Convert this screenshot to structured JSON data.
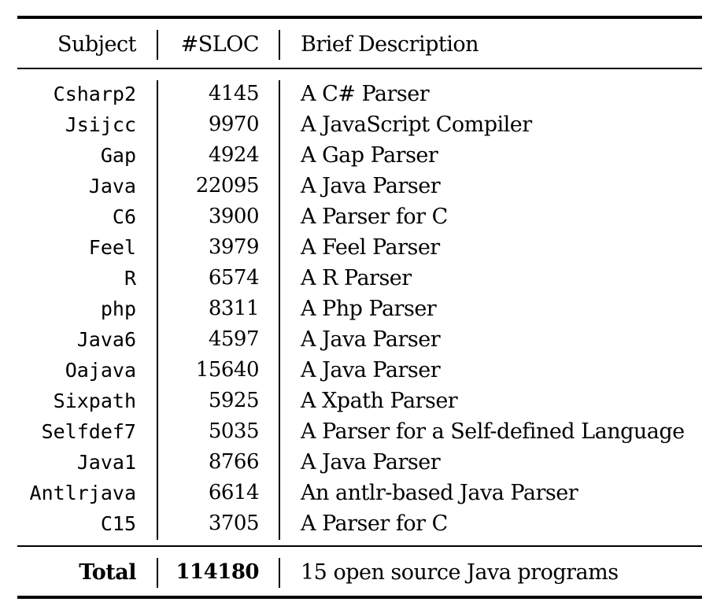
{
  "table": {
    "headers": {
      "subject": "Subject",
      "sloc": "#SLOC",
      "description": "Brief Description"
    },
    "rows": [
      {
        "subject": "Csharp2",
        "sloc": "4145",
        "description": "A C# Parser"
      },
      {
        "subject": "Jsijcc",
        "sloc": "9970",
        "description": "A JavaScript Compiler"
      },
      {
        "subject": "Gap",
        "sloc": "4924",
        "description": "A Gap Parser"
      },
      {
        "subject": "Java",
        "sloc": "22095",
        "description": "A Java Parser"
      },
      {
        "subject": "C6",
        "sloc": "3900",
        "description": "A Parser for C"
      },
      {
        "subject": "Feel",
        "sloc": "3979",
        "description": "A Feel Parser"
      },
      {
        "subject": "R",
        "sloc": "6574",
        "description": "A R Parser"
      },
      {
        "subject": "php",
        "sloc": "8311",
        "description": "A Php Parser"
      },
      {
        "subject": "Java6",
        "sloc": "4597",
        "description": "A Java Parser"
      },
      {
        "subject": "Oajava",
        "sloc": "15640",
        "description": "A Java Parser"
      },
      {
        "subject": "Sixpath",
        "sloc": "5925",
        "description": "A Xpath Parser"
      },
      {
        "subject": "Selfdef7",
        "sloc": "5035",
        "description": "A Parser for a Self-defined Language"
      },
      {
        "subject": "Java1",
        "sloc": "8766",
        "description": "A Java Parser"
      },
      {
        "subject": "Antlrjava",
        "sloc": "6614",
        "description": "An antlr-based Java Parser"
      },
      {
        "subject": "C15",
        "sloc": "3705",
        "description": "A Parser for C"
      }
    ],
    "total": {
      "subject": "Total",
      "sloc": "114180",
      "description": "15 open source Java programs"
    }
  }
}
